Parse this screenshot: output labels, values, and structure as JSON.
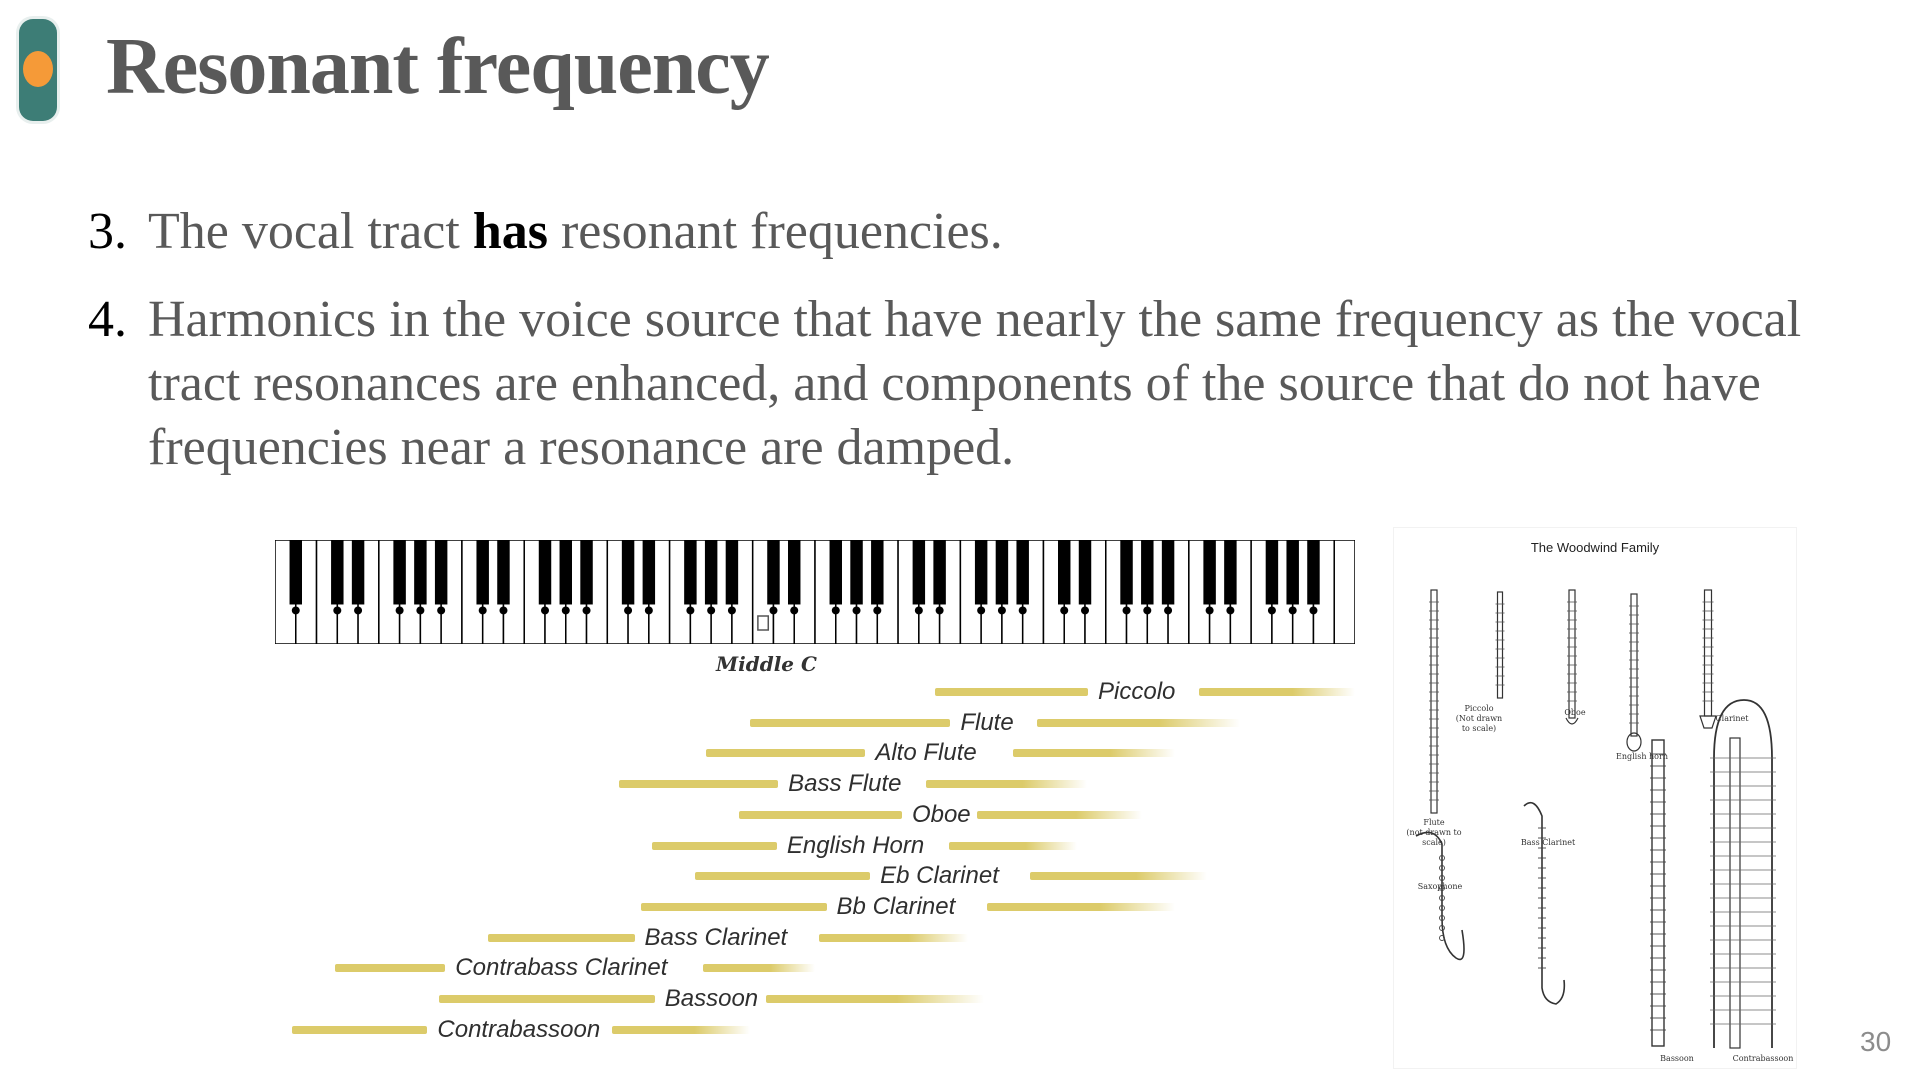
{
  "slide": {
    "title": "Resonant frequency",
    "slide_number": "30",
    "accent_colors": {
      "bar": "#3d7d76",
      "dot": "#f59a38"
    }
  },
  "points": [
    {
      "number": "3.",
      "before": "The vocal tract ",
      "bold": "has",
      "after": " resonant frequencies."
    },
    {
      "number": "4.",
      "text": "Harmonics in the voice source that have nearly the same frequency as the vocal tract resonances are enhanced, and components of the source that do not have frequencies near a resonance are damped."
    }
  ],
  "range_chart": {
    "keyboard_label": "Middle C",
    "bar_color": "#dccb6a",
    "instruments": [
      {
        "name": "Piccolo",
        "low": 0.61,
        "high": 0.995
      },
      {
        "name": "Flute",
        "low": 0.44,
        "high": 0.89
      },
      {
        "name": "Alto Flute",
        "low": 0.4,
        "high": 0.83
      },
      {
        "name": "Bass Flute",
        "low": 0.32,
        "high": 0.75
      },
      {
        "name": "Oboe",
        "low": 0.43,
        "high": 0.8
      },
      {
        "name": "English Horn",
        "low": 0.35,
        "high": 0.74
      },
      {
        "name": "Eb Clarinet",
        "low": 0.39,
        "high": 0.86
      },
      {
        "name": "Bb Clarinet",
        "low": 0.34,
        "high": 0.83
      },
      {
        "name": "Bass Clarinet",
        "low": 0.2,
        "high": 0.64
      },
      {
        "name": "Contrabass Clarinet",
        "low": 0.06,
        "high": 0.5
      },
      {
        "name": "Bassoon",
        "low": 0.155,
        "high": 0.655
      },
      {
        "name": "Contrabassoon",
        "low": 0.02,
        "high": 0.44
      }
    ]
  },
  "woodwind_figure": {
    "title": "The Woodwind Family",
    "captions": {
      "piccolo": "Piccolo\n(Not drawn\nto scale)",
      "oboe": "Oboe",
      "clarinet": "Clarinet",
      "english_horn": "English horn",
      "flute": "Flute\n(not drawn to scale)",
      "bass_clarinet": "Bass Clarinet",
      "saxophone": "Saxophone",
      "bassoon": "Bassoon",
      "contrabassoon": "Contrabassoon"
    }
  }
}
